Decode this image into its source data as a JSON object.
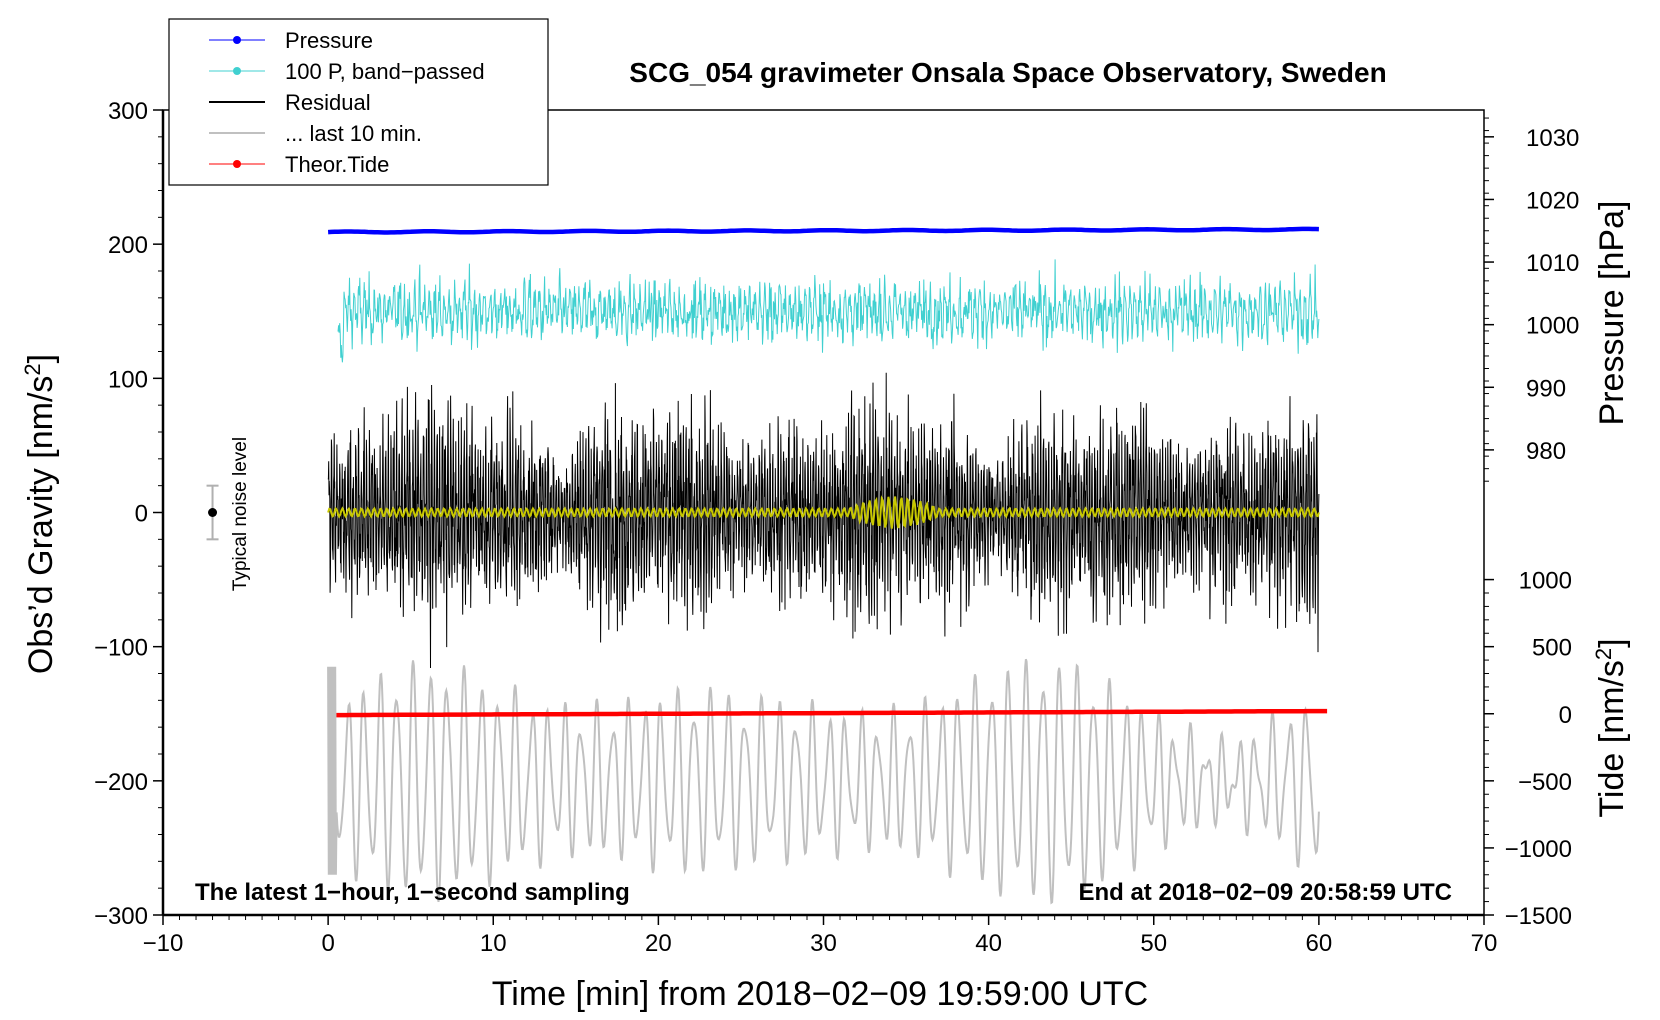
{
  "chart_data": {
    "type": "line",
    "title": "SCG_054 gravimeter Onsala Space Observatory, Sweden",
    "xlabel": "Time [min] from 2018−02−09 19:59:00 UTC",
    "ylabel_left": "Obs’d Gravity [nm/s²]",
    "ylabel_right_top": "Pressure [hPa]",
    "ylabel_right_bottom": "Tide [nm/s²]",
    "xlim": [
      -10,
      70
    ],
    "ylim_left": [
      -300,
      300
    ],
    "x_ticks": [
      "−10",
      "0",
      "10",
      "20",
      "30",
      "40",
      "50",
      "60",
      "70"
    ],
    "x_tick_values": [
      -10,
      0,
      10,
      20,
      30,
      40,
      50,
      60,
      70
    ],
    "y_left_ticks": [
      "300",
      "200",
      "100",
      "0",
      "−100",
      "−200",
      "−300"
    ],
    "y_left_tick_values": [
      300,
      200,
      100,
      0,
      -100,
      -200,
      -300
    ],
    "pressure_axis": {
      "ticks": [
        "1030",
        "1020",
        "1010",
        "1000",
        "990",
        "980"
      ],
      "tick_values": [
        1030,
        1020,
        1010,
        1000,
        990,
        980
      ],
      "gravity_equivalent": [
        280,
        233.33,
        186.67,
        140,
        93.33,
        46.67
      ]
    },
    "tide_axis": {
      "ticks": [
        "1000",
        "500",
        "0",
        "−500",
        "−1000",
        "−1500"
      ],
      "tick_values": [
        1000,
        500,
        0,
        -500,
        -1000,
        -1500
      ],
      "gravity_equivalent": [
        -50,
        -100,
        -150,
        -200,
        -250,
        -300
      ]
    },
    "annotation_left": "The latest 1−hour, 1−second sampling",
    "annotation_right": "End at 2018−02−09 20:58:59 UTC",
    "noise_label": "Typical noise level",
    "noise_level": {
      "x": -7,
      "center": 0,
      "half_range": 20
    },
    "series": [
      {
        "name": "Pressure",
        "color": "#0000ff",
        "x_range": [
          0,
          60
        ],
        "y_start": 209,
        "y_end": 211
      },
      {
        "name": "100 P, band−passed",
        "color": "#40d0d0",
        "x_range": [
          0,
          60.5
        ],
        "center": 150,
        "amplitude": 22
      },
      {
        "name": "Residual",
        "color": "#000000",
        "x_range": [
          0,
          60
        ],
        "center": 0,
        "amplitude": 55
      },
      {
        "name": "... last 10 min.",
        "color": "#c0c0c0",
        "x_range": [
          0,
          60
        ],
        "center": -200,
        "amplitude": 65
      },
      {
        "name": "Theor.Tide",
        "color": "#ff0000",
        "x_range": [
          0.5,
          60.5
        ],
        "y_start": -151,
        "y_end": -148
      },
      {
        "name": "low-pass residual",
        "color": "#c8c800",
        "x_range": [
          0,
          60
        ],
        "center": 0,
        "amplitude": 3
      }
    ],
    "legend": [
      {
        "label": "Pressure",
        "color": "#0000ff",
        "marker": true
      },
      {
        "label": "100 P, band−passed",
        "color": "#40d0d0",
        "marker": true
      },
      {
        "label": "Residual",
        "color": "#000000",
        "marker": false
      },
      {
        "label": "... last 10 min.",
        "color": "#c0c0c0",
        "marker": false
      },
      {
        "label": "Theor.Tide",
        "color": "#ff0000",
        "marker": true
      }
    ],
    "legend_position": "top-left, outside plot"
  }
}
